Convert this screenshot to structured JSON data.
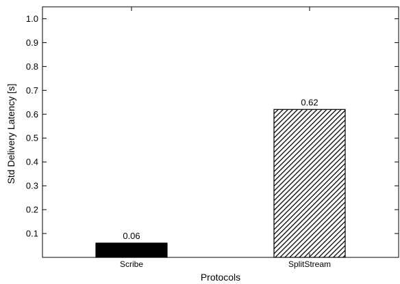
{
  "chart_data": {
    "type": "bar",
    "title": "",
    "xlabel": "Protocols",
    "ylabel": "Std Delivery Latency [s]",
    "categories": [
      "Scribe",
      "SplitStream"
    ],
    "values": [
      0.06,
      0.62
    ],
    "data_labels": [
      "0.06",
      "0.62"
    ],
    "bar_styles": [
      "solid-black",
      "diagonal-hatch"
    ],
    "ylim": [
      0,
      1.05
    ],
    "yticks": [
      0.1,
      0.2,
      0.3,
      0.4,
      0.5,
      0.6,
      0.7,
      0.8,
      0.9,
      1.0
    ],
    "ytick_labels": [
      "0.1",
      "0.2",
      "0.3",
      "0.4",
      "0.5",
      "0.6",
      "0.7",
      "0.8",
      "0.9",
      "1.0"
    ],
    "grid": false,
    "legend": "none",
    "colors": {
      "bar_fill": "#000000",
      "hatch_bg": "#ffffff",
      "axis": "#000000"
    }
  }
}
